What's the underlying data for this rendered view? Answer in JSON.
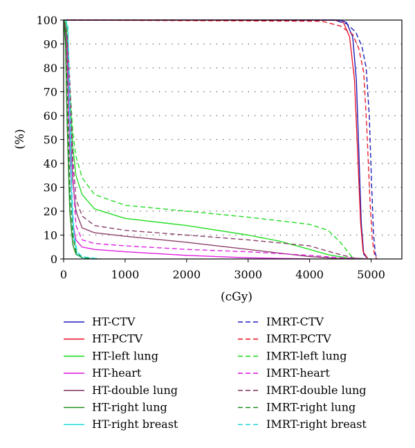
{
  "chart_data": {
    "type": "line",
    "xlabel": "(cGy)",
    "ylabel": "(%)",
    "xlim": [
      0,
      5500
    ],
    "ylim": [
      0,
      100
    ],
    "x_ticks": [
      0,
      1000,
      2000,
      3000,
      4000,
      5000
    ],
    "y_ticks": [
      0,
      10,
      20,
      30,
      40,
      50,
      60,
      70,
      80,
      90,
      100
    ],
    "grid": "horizontal dotted",
    "legend_position": "bottom, two columns",
    "series": [
      {
        "name": "HT-CTV",
        "color": "#1a1ab8",
        "dash": false,
        "points": [
          [
            0,
            100
          ],
          [
            4500,
            100
          ],
          [
            4600,
            99
          ],
          [
            4700,
            93
          ],
          [
            4760,
            75
          ],
          [
            4800,
            45
          ],
          [
            4840,
            15
          ],
          [
            4880,
            2
          ],
          [
            4950,
            0
          ]
        ]
      },
      {
        "name": "HT-PCTV",
        "color": "#e8192c",
        "dash": false,
        "points": [
          [
            0,
            100
          ],
          [
            4400,
            100
          ],
          [
            4550,
            99
          ],
          [
            4650,
            93
          ],
          [
            4730,
            75
          ],
          [
            4780,
            45
          ],
          [
            4830,
            15
          ],
          [
            4870,
            3
          ],
          [
            4950,
            0
          ]
        ]
      },
      {
        "name": "HT-left lung",
        "color": "#22dd22",
        "dash": false,
        "points": [
          [
            0,
            100
          ],
          [
            30,
            99
          ],
          [
            60,
            92
          ],
          [
            100,
            70
          ],
          [
            150,
            47
          ],
          [
            200,
            35
          ],
          [
            300,
            27
          ],
          [
            500,
            21
          ],
          [
            1000,
            17
          ],
          [
            2000,
            14
          ],
          [
            3000,
            10
          ],
          [
            3500,
            7.5
          ],
          [
            4000,
            4
          ],
          [
            4300,
            1.8
          ],
          [
            4600,
            0.5
          ],
          [
            5000,
            0
          ]
        ]
      },
      {
        "name": "HT-heart",
        "color": "#e01ee0",
        "dash": false,
        "points": [
          [
            0,
            100
          ],
          [
            30,
            95
          ],
          [
            60,
            80
          ],
          [
            100,
            45
          ],
          [
            150,
            15
          ],
          [
            200,
            8
          ],
          [
            300,
            5
          ],
          [
            500,
            4
          ],
          [
            1000,
            3
          ],
          [
            2000,
            1.5
          ],
          [
            3000,
            0.5
          ],
          [
            4000,
            0
          ]
        ]
      },
      {
        "name": "HT-double lung",
        "color": "#8a3f6a",
        "dash": false,
        "points": [
          [
            0,
            100
          ],
          [
            30,
            97
          ],
          [
            60,
            88
          ],
          [
            100,
            62
          ],
          [
            150,
            32
          ],
          [
            200,
            20
          ],
          [
            300,
            13
          ],
          [
            500,
            11
          ],
          [
            1000,
            9.5
          ],
          [
            2000,
            7
          ],
          [
            3000,
            4
          ],
          [
            3500,
            2.5
          ],
          [
            4000,
            1
          ],
          [
            4400,
            0.3
          ],
          [
            4700,
            0
          ]
        ]
      },
      {
        "name": "HT-right lung",
        "color": "#1a8a1a",
        "dash": false,
        "points": [
          [
            0,
            100
          ],
          [
            30,
            90
          ],
          [
            60,
            55
          ],
          [
            100,
            20
          ],
          [
            150,
            6
          ],
          [
            200,
            2
          ],
          [
            300,
            0.5
          ],
          [
            500,
            0
          ]
        ]
      },
      {
        "name": "HT-right breast",
        "color": "#33dddd",
        "dash": false,
        "points": [
          [
            0,
            100
          ],
          [
            40,
            100
          ],
          [
            70,
            95
          ],
          [
            100,
            60
          ],
          [
            130,
            25
          ],
          [
            170,
            8
          ],
          [
            220,
            2
          ],
          [
            300,
            0.5
          ],
          [
            500,
            0
          ]
        ]
      },
      {
        "name": "IMRT-CTV",
        "color": "#1a1ab8",
        "dash": true,
        "points": [
          [
            0,
            100
          ],
          [
            4400,
            100
          ],
          [
            4600,
            98.5
          ],
          [
            4750,
            95
          ],
          [
            4850,
            89
          ],
          [
            4920,
            80
          ],
          [
            4970,
            60
          ],
          [
            5010,
            30
          ],
          [
            5040,
            10
          ],
          [
            5070,
            2
          ],
          [
            5100,
            0
          ]
        ]
      },
      {
        "name": "IMRT-PCTV",
        "color": "#e8192c",
        "dash": true,
        "points": [
          [
            0,
            100
          ],
          [
            4200,
            99.5
          ],
          [
            4500,
            97.5
          ],
          [
            4700,
            94
          ],
          [
            4800,
            88
          ],
          [
            4880,
            78
          ],
          [
            4930,
            55
          ],
          [
            4980,
            25
          ],
          [
            5020,
            8
          ],
          [
            5060,
            1
          ],
          [
            5100,
            0
          ]
        ]
      },
      {
        "name": "IMRT-left lung",
        "color": "#22dd22",
        "dash": true,
        "points": [
          [
            0,
            100
          ],
          [
            30,
            99
          ],
          [
            60,
            95
          ],
          [
            100,
            73
          ],
          [
            150,
            53
          ],
          [
            200,
            43
          ],
          [
            300,
            34
          ],
          [
            500,
            27
          ],
          [
            1000,
            22.5
          ],
          [
            2000,
            20
          ],
          [
            3000,
            17.5
          ],
          [
            3500,
            16
          ],
          [
            4000,
            14.5
          ],
          [
            4300,
            12
          ],
          [
            4500,
            7
          ],
          [
            4700,
            0.5
          ],
          [
            4800,
            0
          ]
        ]
      },
      {
        "name": "IMRT-heart",
        "color": "#e01ee0",
        "dash": true,
        "points": [
          [
            0,
            100
          ],
          [
            30,
            97
          ],
          [
            60,
            90
          ],
          [
            100,
            70
          ],
          [
            150,
            35
          ],
          [
            200,
            14
          ],
          [
            300,
            8
          ],
          [
            500,
            6.5
          ],
          [
            1000,
            5.5
          ],
          [
            2000,
            4
          ],
          [
            3000,
            3
          ],
          [
            4000,
            1.5
          ],
          [
            4500,
            0.5
          ],
          [
            5000,
            0
          ]
        ]
      },
      {
        "name": "IMRT-double lung",
        "color": "#8a3f6a",
        "dash": true,
        "points": [
          [
            0,
            100
          ],
          [
            30,
            98
          ],
          [
            60,
            93
          ],
          [
            100,
            75
          ],
          [
            150,
            42
          ],
          [
            200,
            25
          ],
          [
            300,
            18
          ],
          [
            500,
            14
          ],
          [
            1000,
            12
          ],
          [
            2000,
            10
          ],
          [
            3000,
            8
          ],
          [
            4000,
            5.5
          ],
          [
            4400,
            2.5
          ],
          [
            4700,
            0.5
          ],
          [
            4900,
            0
          ]
        ]
      },
      {
        "name": "IMRT-right lung",
        "color": "#1a8a1a",
        "dash": true,
        "points": [
          [
            0,
            100
          ],
          [
            30,
            95
          ],
          [
            60,
            70
          ],
          [
            100,
            30
          ],
          [
            150,
            10
          ],
          [
            200,
            3
          ],
          [
            300,
            0.5
          ],
          [
            600,
            0
          ]
        ]
      },
      {
        "name": "IMRT-right breast",
        "color": "#33dddd",
        "dash": true,
        "points": [
          [
            0,
            100
          ],
          [
            40,
            100
          ],
          [
            70,
            97
          ],
          [
            100,
            70
          ],
          [
            130,
            30
          ],
          [
            170,
            10
          ],
          [
            220,
            3
          ],
          [
            300,
            1
          ],
          [
            600,
            0
          ]
        ]
      }
    ]
  }
}
